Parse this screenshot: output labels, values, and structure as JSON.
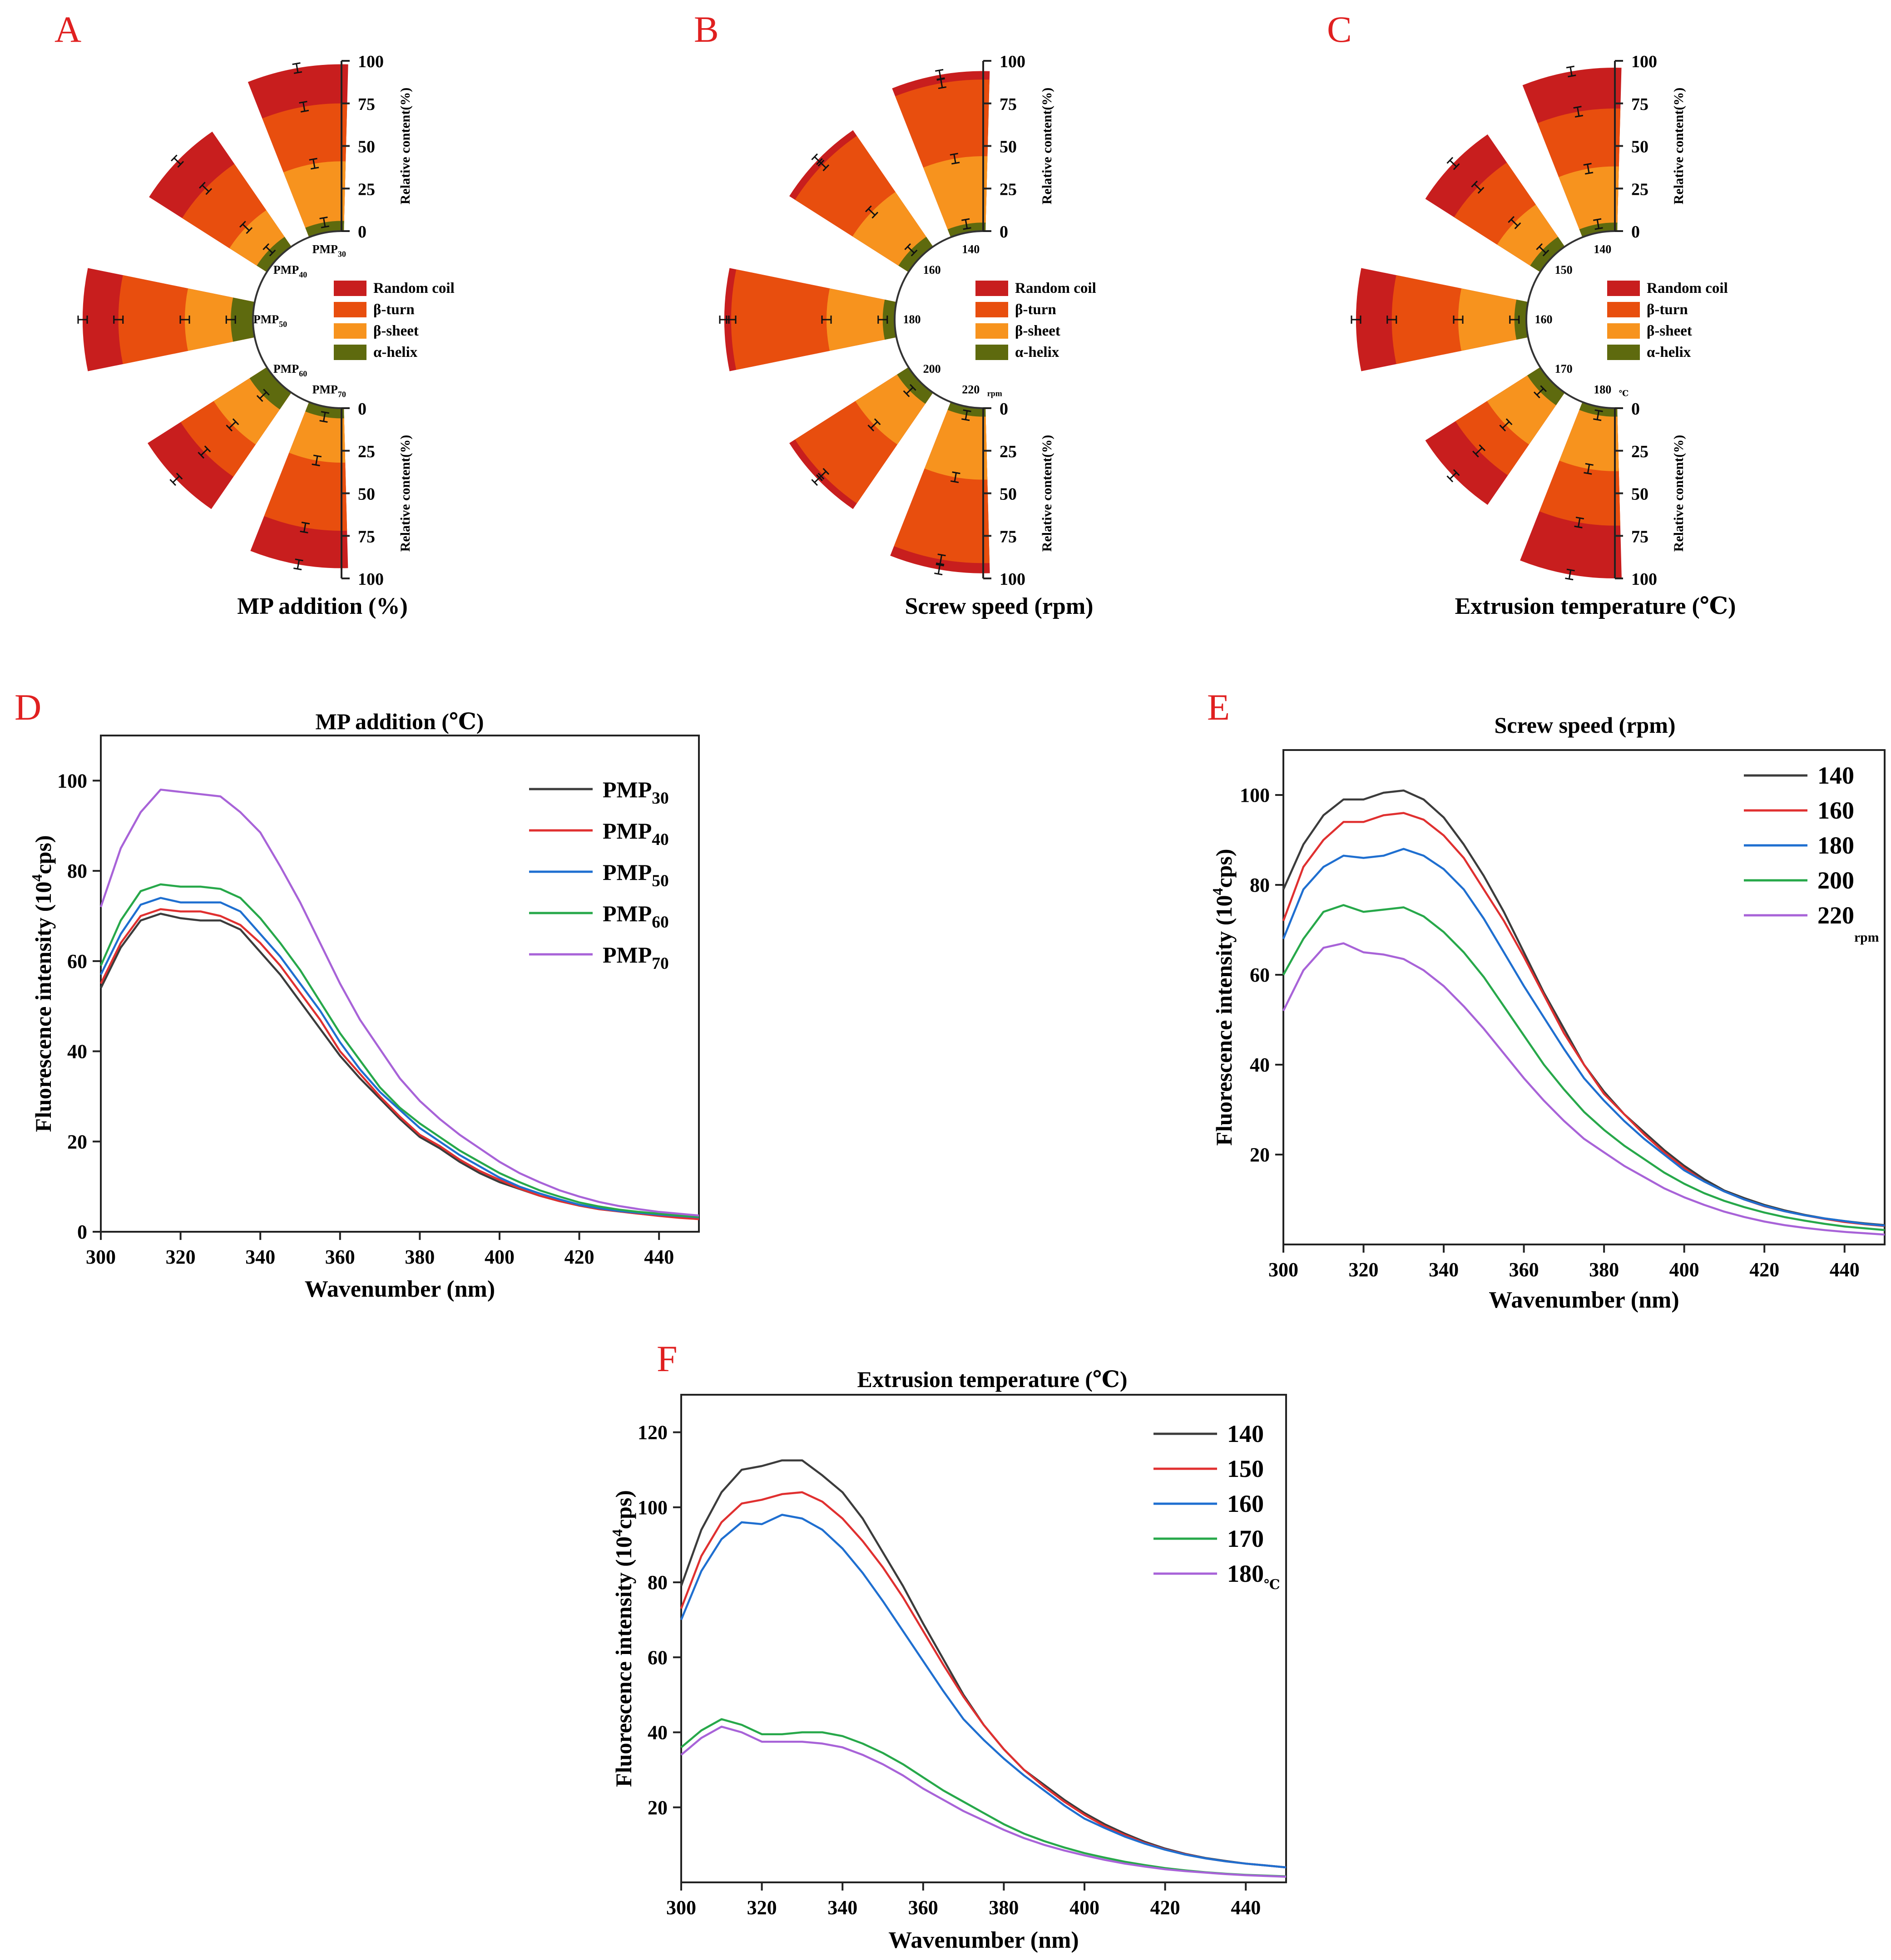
{
  "panel_letters": [
    "A",
    "B",
    "C",
    "D",
    "E",
    "F"
  ],
  "legend_items": [
    {
      "label": "Random coil",
      "color": "#c81e1e"
    },
    {
      "label": "β-turn",
      "color": "#e84e0e"
    },
    {
      "label": "β-sheet",
      "color": "#f7931e"
    },
    {
      "label": "α-helix",
      "color": "#5e6a0e"
    }
  ],
  "radial_axis_label": "Relative content(%)",
  "radial_ticks": [
    "0",
    "25",
    "50",
    "75",
    "100"
  ],
  "chart_data": [
    {
      "type": "bar",
      "subtype": "radial-stacked",
      "panel": "A",
      "title": "MP addition (%)",
      "categories": [
        {
          "base": "PMP",
          "sub": "30"
        },
        {
          "base": "PMP",
          "sub": "40"
        },
        {
          "base": "PMP",
          "sub": "50"
        },
        {
          "base": "PMP",
          "sub": "60"
        },
        {
          "base": "PMP",
          "sub": "70"
        }
      ],
      "unit_label": "",
      "cumulative": {
        "alpha_helix": [
          6,
          7,
          13,
          12,
          6
        ],
        "beta_sheet": [
          41,
          26,
          40,
          37,
          32
        ],
        "beta_turn": [
          75,
          59,
          79,
          60,
          72
        ],
        "random_coil": [
          98,
          82,
          100,
          83,
          94
        ]
      },
      "ylim": [
        0,
        100
      ]
    },
    {
      "type": "bar",
      "subtype": "radial-stacked",
      "panel": "B",
      "title": "Screw speed (rpm)",
      "categories": [
        {
          "base": "140"
        },
        {
          "base": "160"
        },
        {
          "base": "180"
        },
        {
          "base": "200"
        },
        {
          "base": "220"
        }
      ],
      "unit_label": "rpm",
      "cumulative": {
        "alpha_helix": [
          5,
          7,
          7,
          8,
          5
        ],
        "beta_sheet": [
          44,
          39,
          40,
          37,
          42
        ],
        "beta_turn": [
          89,
          79,
          96,
          79,
          91
        ],
        "random_coil": [
          94,
          83,
          100,
          83,
          97
        ]
      },
      "ylim": [
        0,
        100
      ]
    },
    {
      "type": "bar",
      "subtype": "radial-stacked",
      "panel": "C",
      "title": "Extrusion temperature (℃)",
      "categories": [
        {
          "base": "140"
        },
        {
          "base": "150"
        },
        {
          "base": "160"
        },
        {
          "base": "170"
        },
        {
          "base": "180"
        }
      ],
      "unit_label": "℃",
      "cumulative": {
        "alpha_helix": [
          5,
          7,
          7,
          9,
          5
        ],
        "beta_sheet": [
          38,
          30,
          40,
          37,
          37
        ],
        "beta_turn": [
          72,
          60,
          79,
          59,
          69
        ],
        "random_coil": [
          96,
          80,
          100,
          80,
          100
        ]
      },
      "ylim": [
        0,
        100
      ]
    },
    {
      "type": "line",
      "panel": "D",
      "title": "MP addition (℃)",
      "xlabel": "Wavenumber (nm)",
      "ylabel_base": "Fluorescence intensity (10",
      "ylabel_sup": "4",
      "ylabel_end": "cps)",
      "xlim": [
        300,
        450
      ],
      "ylim": [
        0,
        110
      ],
      "xticks": [
        300,
        320,
        340,
        360,
        380,
        400,
        420,
        440
      ],
      "yticks": [
        0,
        20,
        40,
        60,
        80,
        100
      ],
      "x": [
        300,
        305,
        310,
        315,
        320,
        325,
        330,
        335,
        340,
        345,
        350,
        355,
        360,
        365,
        370,
        375,
        380,
        385,
        390,
        395,
        400,
        405,
        410,
        415,
        420,
        425,
        430,
        435,
        440,
        445,
        450
      ],
      "series": [
        {
          "name": "PMP",
          "sub": "30",
          "color": "#3c3c3c",
          "values": [
            54,
            63,
            69,
            70.5,
            69.5,
            69,
            69,
            67,
            62,
            57,
            51,
            45,
            39,
            34,
            29.5,
            25,
            21,
            18.5,
            15.5,
            13,
            11,
            9.5,
            8,
            6.8,
            5.8,
            5,
            4.5,
            4,
            3.6,
            3.3,
            3
          ]
        },
        {
          "name": "PMP",
          "sub": "40",
          "color": "#e03030",
          "values": [
            55,
            64,
            70,
            71.5,
            71,
            71,
            70,
            68,
            64,
            59,
            53,
            47,
            40,
            35,
            30,
            25.5,
            21.5,
            19,
            16,
            13.5,
            11.5,
            9.6,
            8,
            6.8,
            5.8,
            5,
            4.5,
            4,
            3.5,
            3.1,
            2.8
          ]
        },
        {
          "name": "PMP",
          "sub": "50",
          "color": "#1f6fd0",
          "values": [
            57,
            66,
            72.5,
            74,
            73,
            73,
            73,
            71,
            66,
            61,
            55,
            49,
            42,
            36,
            31,
            27,
            23,
            20,
            17,
            14.5,
            12,
            10,
            8.5,
            7.2,
            6,
            5.2,
            4.6,
            4.2,
            3.8,
            3.5,
            3.2
          ]
        },
        {
          "name": "PMP",
          "sub": "60",
          "color": "#27a84a",
          "values": [
            59,
            69,
            75.5,
            77,
            76.5,
            76.5,
            76,
            74,
            69.5,
            64,
            58,
            51,
            44,
            38,
            32,
            27.5,
            24,
            21,
            18,
            15.5,
            13,
            11,
            9.2,
            7.8,
            6.5,
            5.6,
            4.9,
            4.4,
            4,
            3.6,
            3.3
          ]
        },
        {
          "name": "PMP",
          "sub": "70",
          "color": "#a863d8",
          "values": [
            72,
            85,
            93,
            98,
            97.5,
            97,
            96.5,
            93,
            88.5,
            81,
            73,
            64,
            55,
            47,
            40.5,
            34,
            29,
            25,
            21.5,
            18.5,
            15.5,
            13,
            11,
            9.2,
            7.8,
            6.6,
            5.7,
            5,
            4.4,
            4,
            3.6
          ]
        }
      ]
    },
    {
      "type": "line",
      "panel": "E",
      "title": "Screw speed (rpm)",
      "xlabel": "Wavenumber (nm)",
      "ylabel_base": "Fluorescence intensity (10",
      "ylabel_sup": "4",
      "ylabel_end": "cps)",
      "unit_label": "rpm",
      "xlim": [
        300,
        450
      ],
      "ylim": [
        0,
        110
      ],
      "xticks": [
        300,
        320,
        340,
        360,
        380,
        400,
        420,
        440
      ],
      "yticks": [
        20,
        40,
        60,
        80,
        100
      ],
      "x": [
        300,
        305,
        310,
        315,
        320,
        325,
        330,
        335,
        340,
        345,
        350,
        355,
        360,
        365,
        370,
        375,
        380,
        385,
        390,
        395,
        400,
        405,
        410,
        415,
        420,
        425,
        430,
        435,
        440,
        445,
        450
      ],
      "series": [
        {
          "name": "140",
          "color": "#3c3c3c",
          "values": [
            79,
            89,
            95.5,
            99,
            99,
            100.5,
            101,
            99,
            95,
            89,
            82,
            74,
            65,
            56,
            48,
            40,
            34,
            29,
            25,
            21,
            17.5,
            14.5,
            12,
            10.3,
            8.8,
            7.6,
            6.6,
            5.8,
            5.2,
            4.7,
            4.3
          ]
        },
        {
          "name": "160",
          "color": "#e03030",
          "values": [
            72,
            84,
            90,
            94,
            94,
            95.5,
            96,
            94.5,
            91,
            86,
            79,
            72,
            64,
            55.5,
            47,
            40,
            33.5,
            29,
            24.5,
            20.5,
            17,
            14,
            11.8,
            10,
            8.5,
            7.4,
            6.5,
            5.7,
            5,
            4.5,
            4.1
          ]
        },
        {
          "name": "180",
          "color": "#1f6fd0",
          "values": [
            68,
            79,
            84,
            86.5,
            86,
            86.5,
            88,
            86.5,
            83.5,
            79,
            72.5,
            65,
            57.5,
            50.5,
            43.5,
            37,
            32,
            27.5,
            23.5,
            20,
            16.5,
            14,
            11.8,
            10,
            8.6,
            7.4,
            6.5,
            5.8,
            5.2,
            4.6,
            4.2
          ]
        },
        {
          "name": "200",
          "color": "#27a84a",
          "values": [
            60,
            68,
            74,
            75.5,
            74,
            74.5,
            75,
            73,
            69.5,
            65,
            59.5,
            53,
            46.5,
            40,
            34.5,
            29.5,
            25.5,
            22,
            19,
            16,
            13.5,
            11.4,
            9.7,
            8.3,
            7.1,
            6.1,
            5.3,
            4.6,
            4,
            3.6,
            3.2
          ]
        },
        {
          "name": "220",
          "color": "#a863d8",
          "values": [
            52,
            61,
            66,
            67,
            65,
            64.5,
            63.5,
            61,
            57.5,
            53,
            48,
            42.5,
            37,
            32,
            27.5,
            23.5,
            20.5,
            17.5,
            15,
            12.5,
            10.5,
            8.8,
            7.3,
            6.1,
            5.1,
            4.3,
            3.7,
            3.2,
            2.8,
            2.5,
            2.2
          ]
        }
      ]
    },
    {
      "type": "line",
      "panel": "F",
      "title": "Extrusion temperature (℃)",
      "xlabel": "Wavenumber (nm)",
      "ylabel_base": "Fluorescence intensity (10",
      "ylabel_sup": "4",
      "ylabel_end": "cps)",
      "unit_label": "℃",
      "xlim": [
        300,
        450
      ],
      "ylim": [
        0,
        130
      ],
      "xticks": [
        300,
        320,
        340,
        360,
        380,
        400,
        420,
        440
      ],
      "yticks": [
        20,
        40,
        60,
        80,
        100,
        120
      ],
      "x": [
        300,
        305,
        310,
        315,
        320,
        325,
        330,
        335,
        340,
        345,
        350,
        355,
        360,
        365,
        370,
        375,
        380,
        385,
        390,
        395,
        400,
        405,
        410,
        415,
        420,
        425,
        430,
        435,
        440,
        445,
        450
      ],
      "series": [
        {
          "name": "140",
          "color": "#3c3c3c",
          "values": [
            79,
            94,
            104,
            110,
            111,
            112.5,
            112.5,
            108.5,
            104,
            97,
            88,
            79,
            69,
            59.5,
            50,
            42,
            35.5,
            30,
            26,
            22,
            18.5,
            15.5,
            13,
            10.8,
            9,
            7.6,
            6.5,
            5.7,
            5,
            4.5,
            4
          ]
        },
        {
          "name": "150",
          "color": "#e03030",
          "values": [
            73,
            87,
            96,
            101,
            102,
            103.5,
            104,
            101.5,
            97,
            91,
            84,
            76,
            67,
            58,
            49.5,
            42,
            35.5,
            30,
            25.5,
            21.5,
            18,
            15,
            12.6,
            10.5,
            8.8,
            7.5,
            6.4,
            5.6,
            5,
            4.5,
            4
          ]
        },
        {
          "name": "160",
          "color": "#1f6fd0",
          "values": [
            70,
            83,
            91.5,
            96,
            95.5,
            98,
            97,
            94,
            89,
            82.5,
            75,
            67,
            59,
            51,
            43.5,
            38,
            33,
            28.5,
            24.5,
            20.5,
            17,
            14.5,
            12.2,
            10.3,
            8.7,
            7.4,
            6.4,
            5.6,
            5,
            4.5,
            4
          ]
        },
        {
          "name": "170",
          "color": "#27a84a",
          "values": [
            36,
            40.5,
            43.5,
            42,
            39.5,
            39.5,
            40,
            40,
            39,
            37,
            34.5,
            31.5,
            28,
            24.5,
            21.5,
            18.5,
            15.5,
            13,
            11,
            9.3,
            7.8,
            6.6,
            5.5,
            4.6,
            3.8,
            3.2,
            2.7,
            2.3,
            2,
            1.8,
            1.6
          ]
        },
        {
          "name": "180",
          "color": "#a863d8",
          "values": [
            34,
            38.5,
            41.5,
            40,
            37.5,
            37.5,
            37.5,
            37,
            36,
            34,
            31.5,
            28.5,
            25,
            22,
            19,
            16.5,
            14,
            11.8,
            10,
            8.5,
            7.2,
            6,
            5,
            4.2,
            3.5,
            3,
            2.6,
            2.2,
            1.9,
            1.7,
            1.5
          ]
        }
      ]
    }
  ]
}
